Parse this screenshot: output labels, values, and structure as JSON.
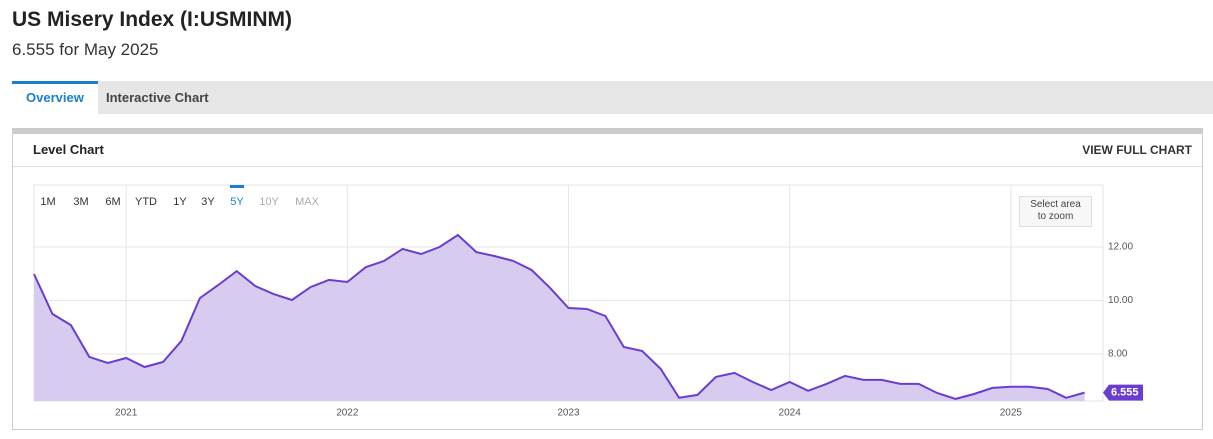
{
  "header": {
    "title": "US Misery Index (I:USMINM)",
    "subtitle": "6.555 for May 2025"
  },
  "tabs": [
    {
      "label": "Overview",
      "state": "active"
    },
    {
      "label": "Interactive Chart",
      "state": "normal"
    }
  ],
  "panel": {
    "title": "Level Chart",
    "action": "VIEW FULL CHART"
  },
  "range_buttons": [
    {
      "label": "1M",
      "state": "normal"
    },
    {
      "label": "3M",
      "state": "normal"
    },
    {
      "label": "6M",
      "state": "normal"
    },
    {
      "label": "YTD",
      "state": "normal"
    },
    {
      "label": "1Y",
      "state": "normal"
    },
    {
      "label": "3Y",
      "state": "normal"
    },
    {
      "label": "5Y",
      "state": "active"
    },
    {
      "label": "10Y",
      "state": "disabled"
    },
    {
      "label": "MAX",
      "state": "disabled"
    }
  ],
  "zoom_hint": "Select area to zoom",
  "chart_data": {
    "type": "area",
    "x": [
      "2020-08",
      "2020-09",
      "2020-10",
      "2020-11",
      "2020-12",
      "2021-01",
      "2021-02",
      "2021-03",
      "2021-04",
      "2021-05",
      "2021-06",
      "2021-07",
      "2021-08",
      "2021-09",
      "2021-10",
      "2021-11",
      "2021-12",
      "2022-01",
      "2022-02",
      "2022-03",
      "2022-04",
      "2022-05",
      "2022-06",
      "2022-07",
      "2022-08",
      "2022-09",
      "2022-10",
      "2022-11",
      "2022-12",
      "2023-01",
      "2023-02",
      "2023-03",
      "2023-04",
      "2023-05",
      "2023-06",
      "2023-07",
      "2023-08",
      "2023-09",
      "2023-10",
      "2023-11",
      "2023-12",
      "2024-01",
      "2024-02",
      "2024-03",
      "2024-04",
      "2024-05",
      "2024-06",
      "2024-07",
      "2024-08",
      "2024-09",
      "2024-10",
      "2024-11",
      "2024-12",
      "2025-01",
      "2025-02",
      "2025-03",
      "2025-04",
      "2025-05"
    ],
    "values": [
      10.99,
      9.5,
      9.08,
      7.89,
      7.66,
      7.85,
      7.51,
      7.7,
      8.49,
      10.09,
      10.58,
      11.1,
      10.54,
      10.24,
      10.02,
      10.5,
      10.77,
      10.69,
      11.25,
      11.48,
      11.93,
      11.74,
      12.0,
      12.45,
      11.81,
      11.66,
      11.48,
      11.14,
      10.47,
      9.72,
      9.68,
      9.42,
      8.26,
      8.11,
      7.44,
      6.36,
      6.47,
      7.14,
      7.29,
      6.95,
      6.65,
      6.95,
      6.62,
      6.88,
      7.18,
      7.03,
      7.03,
      6.88,
      6.88,
      6.54,
      6.32,
      6.5,
      6.73,
      6.77,
      6.77,
      6.69,
      6.36,
      6.555
    ],
    "color": "#6a3dd0",
    "fill_color": "#d7ccef",
    "xlim": [
      "2020-08",
      "2025-06"
    ],
    "xticks": [
      2021,
      2022,
      2023,
      2024,
      2025
    ],
    "ylim": [
      6.24,
      14.32
    ],
    "yticks": [
      {
        "value": 8,
        "label": "8.00"
      },
      {
        "value": 10,
        "label": "10.00"
      },
      {
        "value": 12,
        "label": "12.00"
      }
    ],
    "grid": true
  }
}
